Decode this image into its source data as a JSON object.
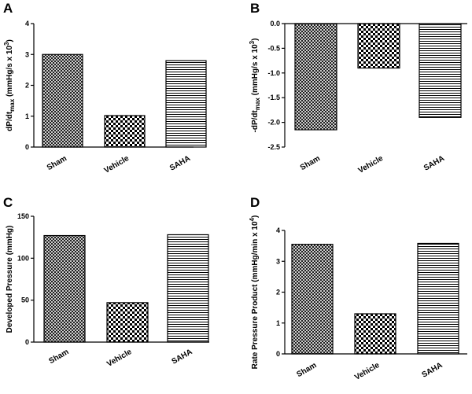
{
  "colors": {
    "axis": "#000000",
    "bar_fill": "#ffffff",
    "pattern": "#000000"
  },
  "categories": [
    "Sham",
    "Vehicle",
    "SAHA"
  ],
  "chart_data": [
    {
      "id": "A",
      "panel_label": "A",
      "type": "bar",
      "categories": [
        "Sham",
        "Vehicle",
        "SAHA"
      ],
      "patterns": [
        "crosshatch",
        "checker",
        "horizontal"
      ],
      "values": [
        3.0,
        1.02,
        2.8
      ],
      "ylim": [
        0,
        4
      ],
      "yticks": [
        0,
        1,
        2,
        3,
        4
      ],
      "ytick_labels": [
        "0",
        "1",
        "2",
        "3",
        "4"
      ],
      "ylabel": {
        "base": "dP/dt",
        "sub": "max",
        "mid": " (mmHg/s x 10",
        "sup": "3",
        "end": ")"
      },
      "xlabel": ""
    },
    {
      "id": "B",
      "panel_label": "B",
      "type": "bar",
      "categories": [
        "Sham",
        "Vehicle",
        "SAHA"
      ],
      "patterns": [
        "crosshatch",
        "checker",
        "horizontal"
      ],
      "values": [
        -2.15,
        -0.9,
        -1.9
      ],
      "ylim": [
        -2.5,
        0
      ],
      "yticks": [
        0,
        -0.5,
        -1,
        -1.5,
        -2,
        -2.5
      ],
      "ytick_labels": [
        "0.0",
        "-0.5",
        "-1.0",
        "-1.5",
        "-2.0",
        "-2.5"
      ],
      "ylabel": {
        "base": "-dP/dt",
        "sub": "max",
        "mid": " (mmHg/s x 10",
        "sup": "3",
        "end": ")"
      },
      "xlabel": ""
    },
    {
      "id": "C",
      "panel_label": "C",
      "type": "bar",
      "categories": [
        "Sham",
        "Vehicle",
        "SAHA"
      ],
      "patterns": [
        "crosshatch",
        "checker",
        "horizontal"
      ],
      "values": [
        127,
        47,
        128
      ],
      "ylim": [
        0,
        150
      ],
      "yticks": [
        0,
        50,
        100,
        150
      ],
      "ytick_labels": [
        "0",
        "50",
        "100",
        "150"
      ],
      "ylabel": {
        "base": "Developed Pressure (mmHg)",
        "sub": "",
        "mid": "",
        "sup": "",
        "end": ""
      },
      "xlabel": ""
    },
    {
      "id": "D",
      "panel_label": "D",
      "type": "bar",
      "categories": [
        "Sham",
        "Vehicle",
        "SAHA"
      ],
      "patterns": [
        "crosshatch",
        "checker",
        "horizontal"
      ],
      "values": [
        3.55,
        1.3,
        3.58
      ],
      "ylim": [
        0,
        4
      ],
      "yticks": [
        0,
        1,
        2,
        3,
        4
      ],
      "ytick_labels": [
        "0",
        "1",
        "2",
        "3",
        "4"
      ],
      "ylabel": {
        "base": "Rate Pressure Product (mmHg/min x 10",
        "sub": "",
        "mid": "",
        "sup": "4",
        "end": ")"
      },
      "xlabel": ""
    }
  ]
}
